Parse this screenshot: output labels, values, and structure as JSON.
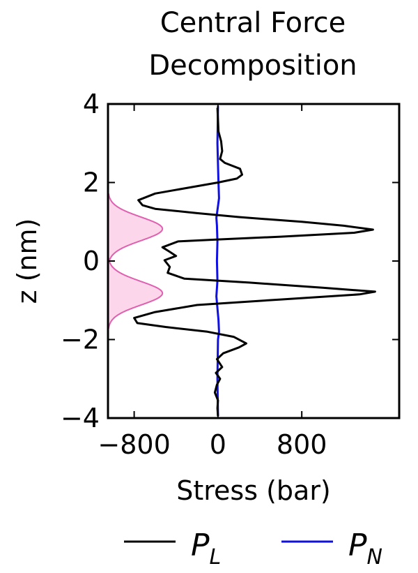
{
  "chart_data": {
    "type": "line",
    "title_lines": [
      "Central Force",
      "Decomposition"
    ],
    "xlabel": "Stress (bar)",
    "ylabel": "z (nm)",
    "xlim": [
      -1050,
      1730
    ],
    "ylim": [
      -4,
      4
    ],
    "xticks": [
      -800,
      0,
      800
    ],
    "yticks": [
      -4,
      -2,
      0,
      2,
      4
    ],
    "xtick_labels": [
      "−800",
      "0",
      "800"
    ],
    "ytick_labels": [
      "−4",
      "−2",
      "0",
      "2",
      "4"
    ],
    "grid": false,
    "legend_position": "bottom",
    "series": [
      {
        "name": "P",
        "subscript": "L",
        "color": "#000000",
        "points": [
          [
            -5,
            3.9
          ],
          [
            0,
            3.6
          ],
          [
            5,
            3.3
          ],
          [
            30,
            3.05
          ],
          [
            40,
            2.8
          ],
          [
            20,
            2.6
          ],
          [
            65,
            2.5
          ],
          [
            210,
            2.35
          ],
          [
            230,
            2.2
          ],
          [
            180,
            2.1
          ],
          [
            0,
            2.0
          ],
          [
            -600,
            1.72
          ],
          [
            -760,
            1.55
          ],
          [
            -720,
            1.42
          ],
          [
            -600,
            1.33
          ],
          [
            -200,
            1.22
          ],
          [
            200,
            1.12
          ],
          [
            800,
            1.0
          ],
          [
            1200,
            0.9
          ],
          [
            1480,
            0.8
          ],
          [
            1300,
            0.72
          ],
          [
            600,
            0.62
          ],
          [
            0,
            0.55
          ],
          [
            -380,
            0.5
          ],
          [
            -530,
            0.35
          ],
          [
            -470,
            0.25
          ],
          [
            -400,
            0.13
          ],
          [
            -510,
            0.02
          ],
          [
            -460,
            -0.15
          ],
          [
            -480,
            -0.3
          ],
          [
            -320,
            -0.45
          ],
          [
            300,
            -0.55
          ],
          [
            1000,
            -0.68
          ],
          [
            1500,
            -0.78
          ],
          [
            1350,
            -0.85
          ],
          [
            600,
            -0.98
          ],
          [
            -200,
            -1.12
          ],
          [
            -600,
            -1.3
          ],
          [
            -800,
            -1.45
          ],
          [
            -770,
            -1.58
          ],
          [
            -500,
            -1.68
          ],
          [
            -100,
            -1.8
          ],
          [
            150,
            -1.93
          ],
          [
            270,
            -2.1
          ],
          [
            200,
            -2.2
          ],
          [
            50,
            -2.35
          ],
          [
            -10,
            -2.5
          ],
          [
            40,
            -2.7
          ],
          [
            -20,
            -2.85
          ],
          [
            20,
            -3.0
          ],
          [
            -10,
            -3.15
          ],
          [
            -30,
            -3.35
          ],
          [
            0,
            -3.55
          ],
          [
            -5,
            -3.75
          ],
          [
            0,
            -3.95
          ]
        ]
      },
      {
        "name": "P",
        "subscript": "N",
        "color": "#1010e0",
        "points": [
          [
            0,
            3.95
          ],
          [
            -5,
            3.0
          ],
          [
            5,
            2.0
          ],
          [
            10,
            1.6
          ],
          [
            0,
            1.4
          ],
          [
            -15,
            1.1
          ],
          [
            -10,
            0.9
          ],
          [
            -5,
            0.5
          ],
          [
            -10,
            0.0
          ],
          [
            -5,
            -0.5
          ],
          [
            -15,
            -0.9
          ],
          [
            -5,
            -1.2
          ],
          [
            5,
            -1.5
          ],
          [
            10,
            -1.8
          ],
          [
            0,
            -2.0
          ],
          [
            -5,
            -3.0
          ],
          [
            0,
            -3.95
          ]
        ]
      }
    ],
    "density_profiles": {
      "color": "#e060b0",
      "fill": "#fcd6ea",
      "baseline_x": -1050,
      "peak_amplitude": 520,
      "peaks": [
        {
          "center": 0.82,
          "sigma": 0.3
        },
        {
          "center": -0.82,
          "sigma": 0.3
        }
      ]
    }
  }
}
